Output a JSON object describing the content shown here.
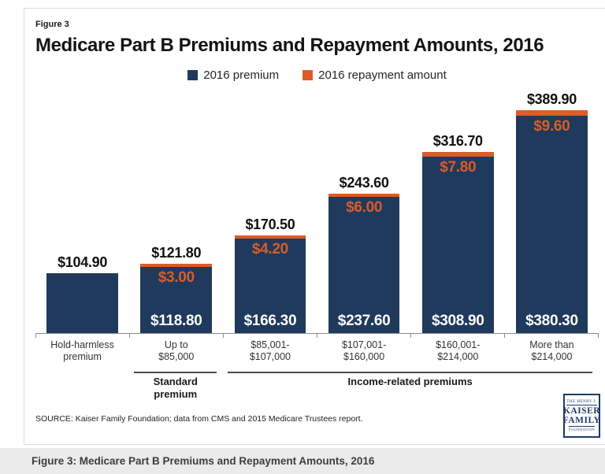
{
  "figure_label": "Figure 3",
  "title": "Medicare Part B Premiums and Repayment Amounts, 2016",
  "legend": {
    "items": [
      {
        "label": "2016 premium",
        "color": "#1f3a5c"
      },
      {
        "label": "2016 repayment amount",
        "color": "#db5c28"
      }
    ]
  },
  "chart_data": {
    "type": "bar",
    "stacked": true,
    "title": "Medicare Part B Premiums and Repayment Amounts, 2016",
    "ylim": [
      0,
      400
    ],
    "grid": false,
    "legend_position": "top-center",
    "categories": [
      [
        "Hold-harmless",
        "premium"
      ],
      [
        "Up to",
        "$85,000"
      ],
      [
        "$85,001-",
        "$107,000"
      ],
      [
        "$107,001-",
        "$160,000"
      ],
      [
        "$160,001-",
        "$214,000"
      ],
      [
        "More than",
        "$214,000"
      ]
    ],
    "series": [
      {
        "name": "2016 premium",
        "color": "#1f3a5c",
        "values": [
          104.9,
          118.8,
          166.3,
          237.6,
          308.9,
          380.3
        ]
      },
      {
        "name": "2016 repayment amount",
        "color": "#db5c28",
        "values": [
          0,
          3.0,
          4.2,
          6.0,
          7.8,
          9.6
        ]
      }
    ],
    "totals": [
      104.9,
      121.8,
      170.5,
      243.6,
      316.7,
      389.9
    ],
    "total_labels": [
      "$104.90",
      "$121.80",
      "$170.50",
      "$243.60",
      "$316.70",
      "$389.90"
    ],
    "repayment_labels": [
      "",
      "$3.00",
      "$4.20",
      "$6.00",
      "$7.80",
      "$9.60"
    ],
    "premium_labels": [
      "",
      "$118.80",
      "$166.30",
      "$237.60",
      "$308.90",
      "$380.30"
    ],
    "group_annotations": [
      {
        "lines": [
          "Standard",
          "premium"
        ],
        "span": [
          1,
          1
        ]
      },
      {
        "lines": [
          "Income-related premiums"
        ],
        "span": [
          2,
          5
        ]
      }
    ]
  },
  "source": "SOURCE: Kaiser Family Foundation; data from CMS and 2015 Medicare Trustees report.",
  "logo": {
    "line1": "THE HENRY J.",
    "line2": "KAISER",
    "line3": "FAMILY",
    "line4": "FOUNDATION"
  },
  "footer": "Figure 3: Medicare Part B Premiums and Repayment Amounts, 2016"
}
